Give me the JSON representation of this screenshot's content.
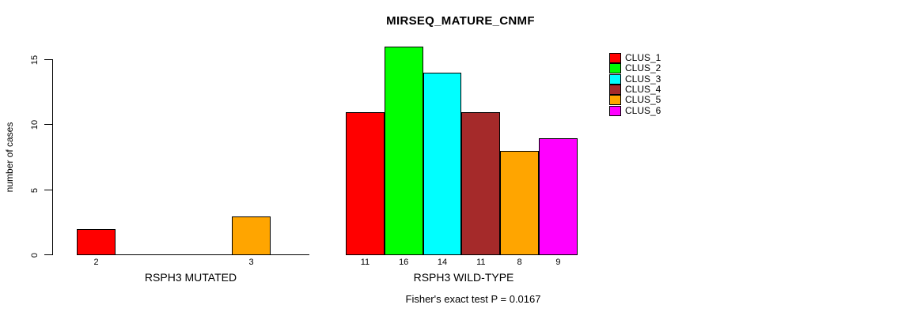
{
  "chart_data": {
    "type": "bar",
    "title": "MIRSEQ_MATURE_CNMF",
    "ylabel": "number of cases",
    "ylim": [
      0,
      16
    ],
    "yticks": [
      0,
      5,
      10,
      15
    ],
    "grid": false,
    "legend_position": "top-right",
    "categories": [
      "CLUS_1",
      "CLUS_2",
      "CLUS_3",
      "CLUS_4",
      "CLUS_5",
      "CLUS_6"
    ],
    "cluster_colors": [
      "#FF0000",
      "#00FF00",
      "#00FFFF",
      "#A52A2A",
      "#FFA500",
      "#FF00FF"
    ],
    "groups": [
      {
        "label": "RSPH3 MUTATED",
        "values": [
          2,
          0,
          0,
          0,
          3,
          0
        ],
        "bar_labels": [
          "2",
          "",
          "",
          "",
          "3",
          ""
        ]
      },
      {
        "label": "RSPH3 WILD-TYPE",
        "values": [
          11,
          16,
          14,
          11,
          8,
          9
        ],
        "bar_labels": [
          "11",
          "16",
          "14",
          "11",
          "8",
          "9"
        ]
      }
    ],
    "legend": [
      {
        "label": "CLUS_1",
        "color": "#FF0000"
      },
      {
        "label": "CLUS_2",
        "color": "#00FF00"
      },
      {
        "label": "CLUS_3",
        "color": "#00FFFF"
      },
      {
        "label": "CLUS_4",
        "color": "#A52A2A"
      },
      {
        "label": "CLUS_5",
        "color": "#FFA500"
      },
      {
        "label": "CLUS_6",
        "color": "#FF00FF"
      }
    ],
    "annotation": "Fisher's exact test P = 0.0167"
  }
}
